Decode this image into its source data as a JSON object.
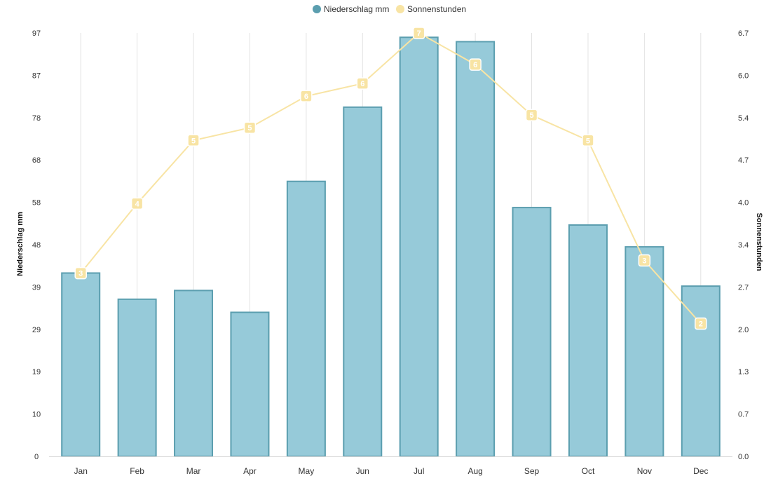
{
  "chart_data": {
    "type": "bar",
    "categories": [
      "Jan",
      "Feb",
      "Mar",
      "Apr",
      "May",
      "Jun",
      "Jul",
      "Aug",
      "Sep",
      "Oct",
      "Nov",
      "Dec"
    ],
    "series": [
      {
        "name": "Niederschlag mm",
        "type": "bar",
        "axis": "left",
        "color": "#96cad9",
        "border_color": "#5b9eaf",
        "values": [
          42,
          36,
          38,
          33,
          63,
          80,
          96,
          95,
          57,
          53,
          48,
          39
        ]
      },
      {
        "name": "Sonnenstunden",
        "type": "line",
        "axis": "right",
        "color": "#f8e4a4",
        "values": [
          2.9,
          4.0,
          5.0,
          5.2,
          5.7,
          5.9,
          6.7,
          6.2,
          5.4,
          5.0,
          3.1,
          2.1
        ],
        "point_labels": [
          "3",
          "4",
          "5",
          "5",
          "6",
          "6",
          "7",
          "6",
          "5",
          "5",
          "3",
          "2"
        ]
      }
    ],
    "y_left": {
      "title": "Niederschlag mm",
      "range": [
        0,
        97
      ],
      "ticks": [
        "0",
        "10",
        "19",
        "29",
        "39",
        "48",
        "58",
        "68",
        "78",
        "87",
        "97"
      ]
    },
    "y_right": {
      "title": "Sonnenstunden",
      "range": [
        0,
        6.7
      ],
      "ticks": [
        "0.0",
        "0.7",
        "1.3",
        "2.0",
        "2.7",
        "3.4",
        "4.0",
        "4.7",
        "5.4",
        "6.0",
        "6.7"
      ]
    },
    "legend": {
      "placement": "top-center",
      "items": [
        "Niederschlag mm",
        "Sonnenstunden"
      ]
    },
    "grid": {
      "vertical": true,
      "horizontal": false
    }
  }
}
